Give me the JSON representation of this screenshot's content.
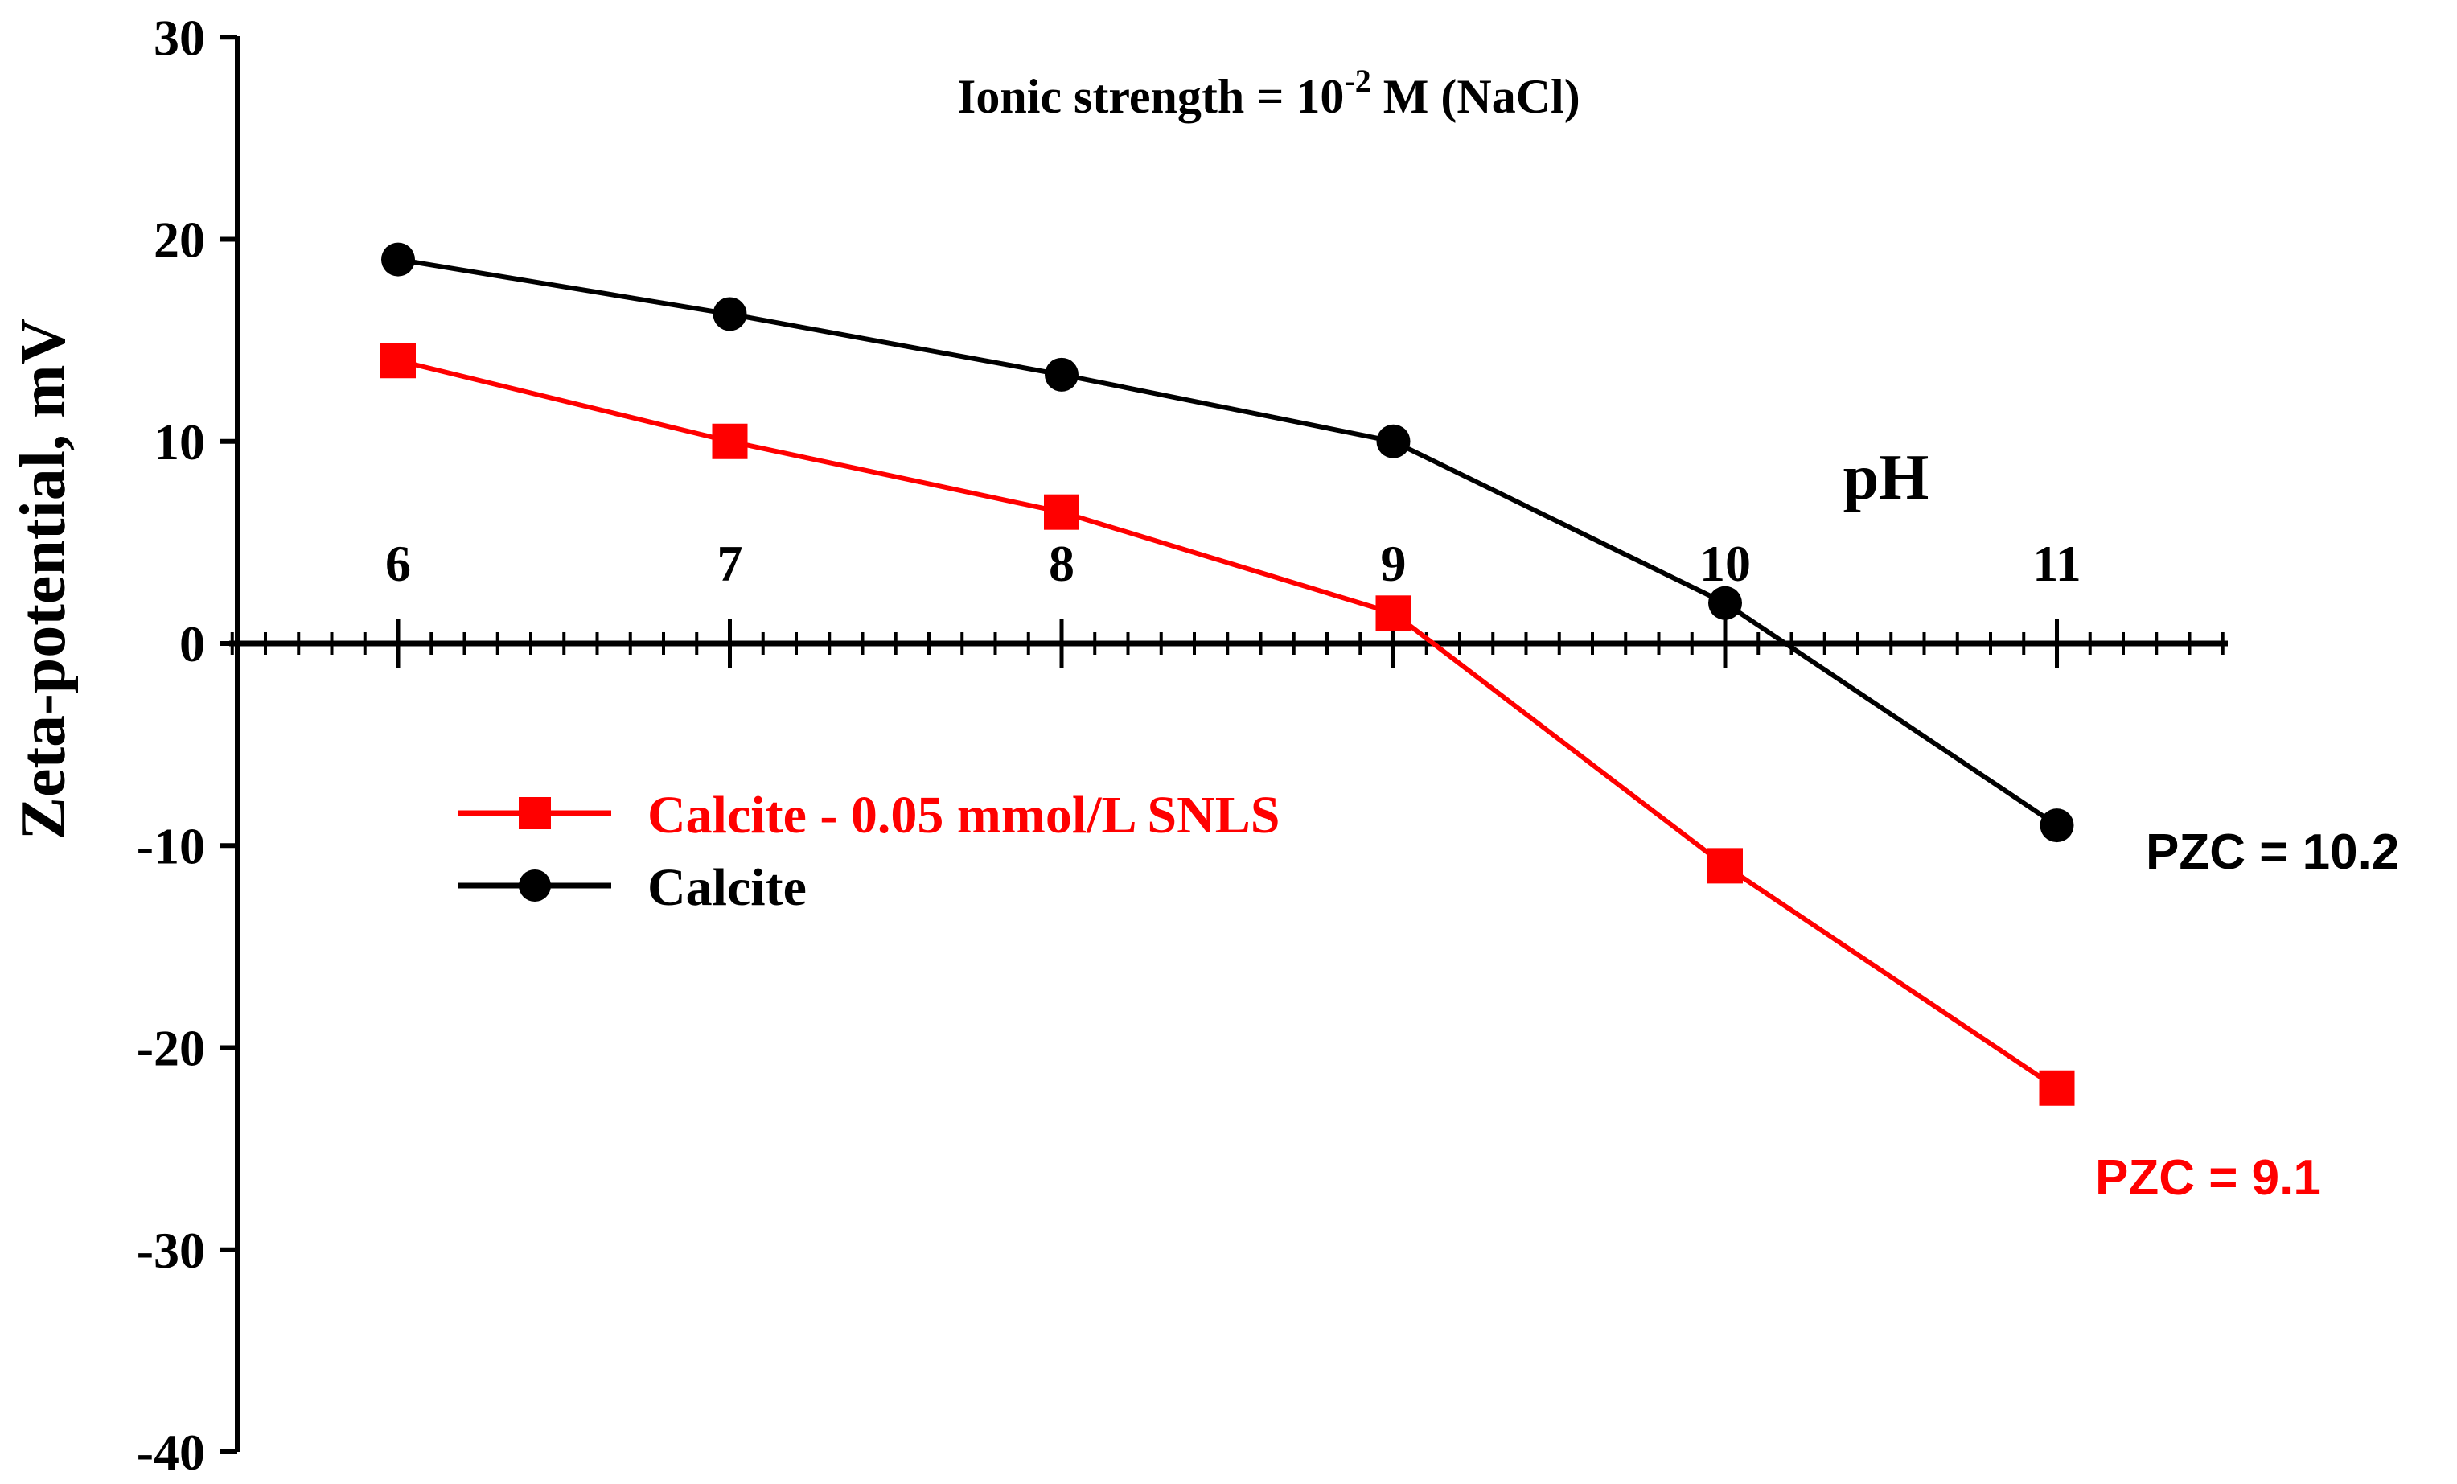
{
  "chart_data": {
    "type": "line",
    "title_prefix": "Ionic strength = 10",
    "title_sup": "-2",
    "title_suffix": " M (NaCl)",
    "xlabel": "pH",
    "ylabel": "Zeta-potential, mV",
    "x": [
      6,
      7,
      8,
      9,
      10,
      11
    ],
    "xlim": [
      5.5,
      11.5
    ],
    "ylim": [
      -40,
      30
    ],
    "yticks": [
      30,
      20,
      10,
      0,
      -10,
      -20,
      -30,
      -40
    ],
    "series": [
      {
        "name": "Calcite - 0.05 mmol/L SNLS",
        "color": "#ff0000",
        "marker": "square",
        "values": [
          14,
          10,
          6.5,
          1.5,
          -11,
          -22
        ]
      },
      {
        "name": "Calcite",
        "color": "#000000",
        "marker": "circle",
        "values": [
          19,
          16.3,
          13.3,
          10,
          2,
          -9
        ]
      }
    ],
    "annotations": [
      {
        "text": "PZC = 10.2",
        "color": "#000000"
      },
      {
        "text": "PZC = 9.1",
        "color": "#ff0000"
      }
    ]
  }
}
